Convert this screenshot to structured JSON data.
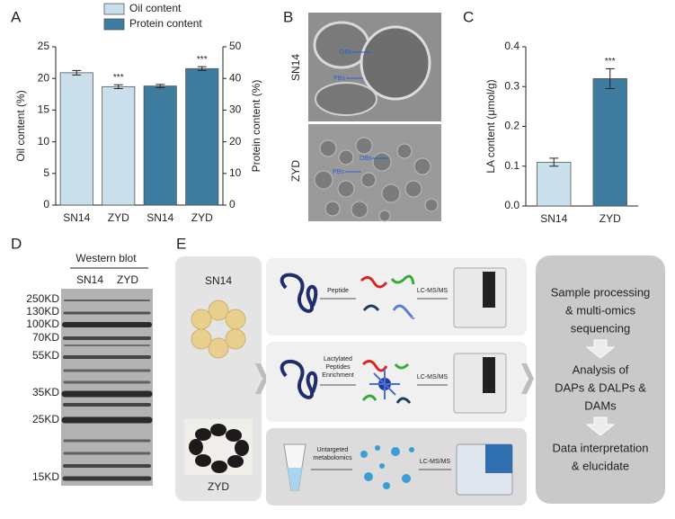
{
  "panel_labels": [
    "A",
    "B",
    "C",
    "D",
    "E"
  ],
  "chart_data": [
    {
      "type": "bar",
      "categories": [
        "SN14",
        "ZYD",
        "SN14",
        "ZYD"
      ],
      "series": [
        {
          "name": "Oil content",
          "color": "#c9e0ec",
          "values": [
            20.9,
            18.7,
            null,
            null
          ],
          "errors": [
            0.35,
            0.3,
            null,
            null
          ]
        },
        {
          "name": "Protein content",
          "color": "#3d7c9e",
          "axis": "y2",
          "values": [
            null,
            null,
            37.6,
            43.1
          ],
          "errors": [
            null,
            null,
            0.5,
            0.6
          ]
        }
      ],
      "significance": [
        null,
        "***",
        null,
        "***"
      ],
      "y_label": "Oil content (%)",
      "y2_label": "Protein content (%)",
      "ylim": [
        0,
        25
      ],
      "yticks": [
        0,
        5,
        10,
        15,
        20,
        25
      ],
      "y2lim": [
        0,
        50
      ],
      "y2ticks": [
        0,
        10,
        20,
        30,
        40,
        50
      ]
    },
    {
      "type": "bar",
      "categories": [
        "SN14",
        "ZYD"
      ],
      "series": [
        {
          "name": null,
          "color": "#3d7c9e",
          "values": [
            0.11,
            0.32
          ],
          "errors": [
            0.01,
            0.025
          ],
          "colors": [
            "#c9e0ec",
            "#3d7c9e"
          ]
        }
      ],
      "significance": [
        null,
        "***"
      ],
      "y_label": "LA content (μmol/g)",
      "ylim": [
        0,
        0.4
      ],
      "yticks": [
        {
          "value": 0,
          "label": "0.0"
        },
        0.1,
        0.2,
        0.3,
        0.4
      ]
    }
  ],
  "sem": {
    "rows": [
      "SN14",
      "ZYD"
    ],
    "labels": [
      "OBs",
      "PBs",
      "OBs",
      "PBs"
    ]
  },
  "western_blot": {
    "title": "Western blot",
    "lanes": [
      "SN14",
      "ZYD"
    ],
    "markers": [
      "250KD",
      "130KD",
      "100KD",
      "70KD",
      "55KD",
      "35KD",
      "25KD",
      "15KD"
    ]
  },
  "workflow": {
    "samples": [
      "SN14",
      "ZYD"
    ],
    "rows": [
      {
        "step": [
          "Peptide"
        ],
        "method": "LC-MS/MS"
      },
      {
        "step": [
          "Lactylated",
          "Peptides",
          "Enrichment"
        ],
        "method": "LC-MS/MS"
      },
      {
        "step": [
          "Untargeted",
          "metabolomics"
        ],
        "method": "LC-MS/MS"
      }
    ],
    "stages": [
      [
        "Sample processing",
        "& multi-omics",
        "sequencing"
      ],
      [
        "Analysis of",
        "DAPs & DALPs &",
        "DAMs"
      ],
      [
        "Data interpretation",
        "& elucidate"
      ]
    ]
  }
}
